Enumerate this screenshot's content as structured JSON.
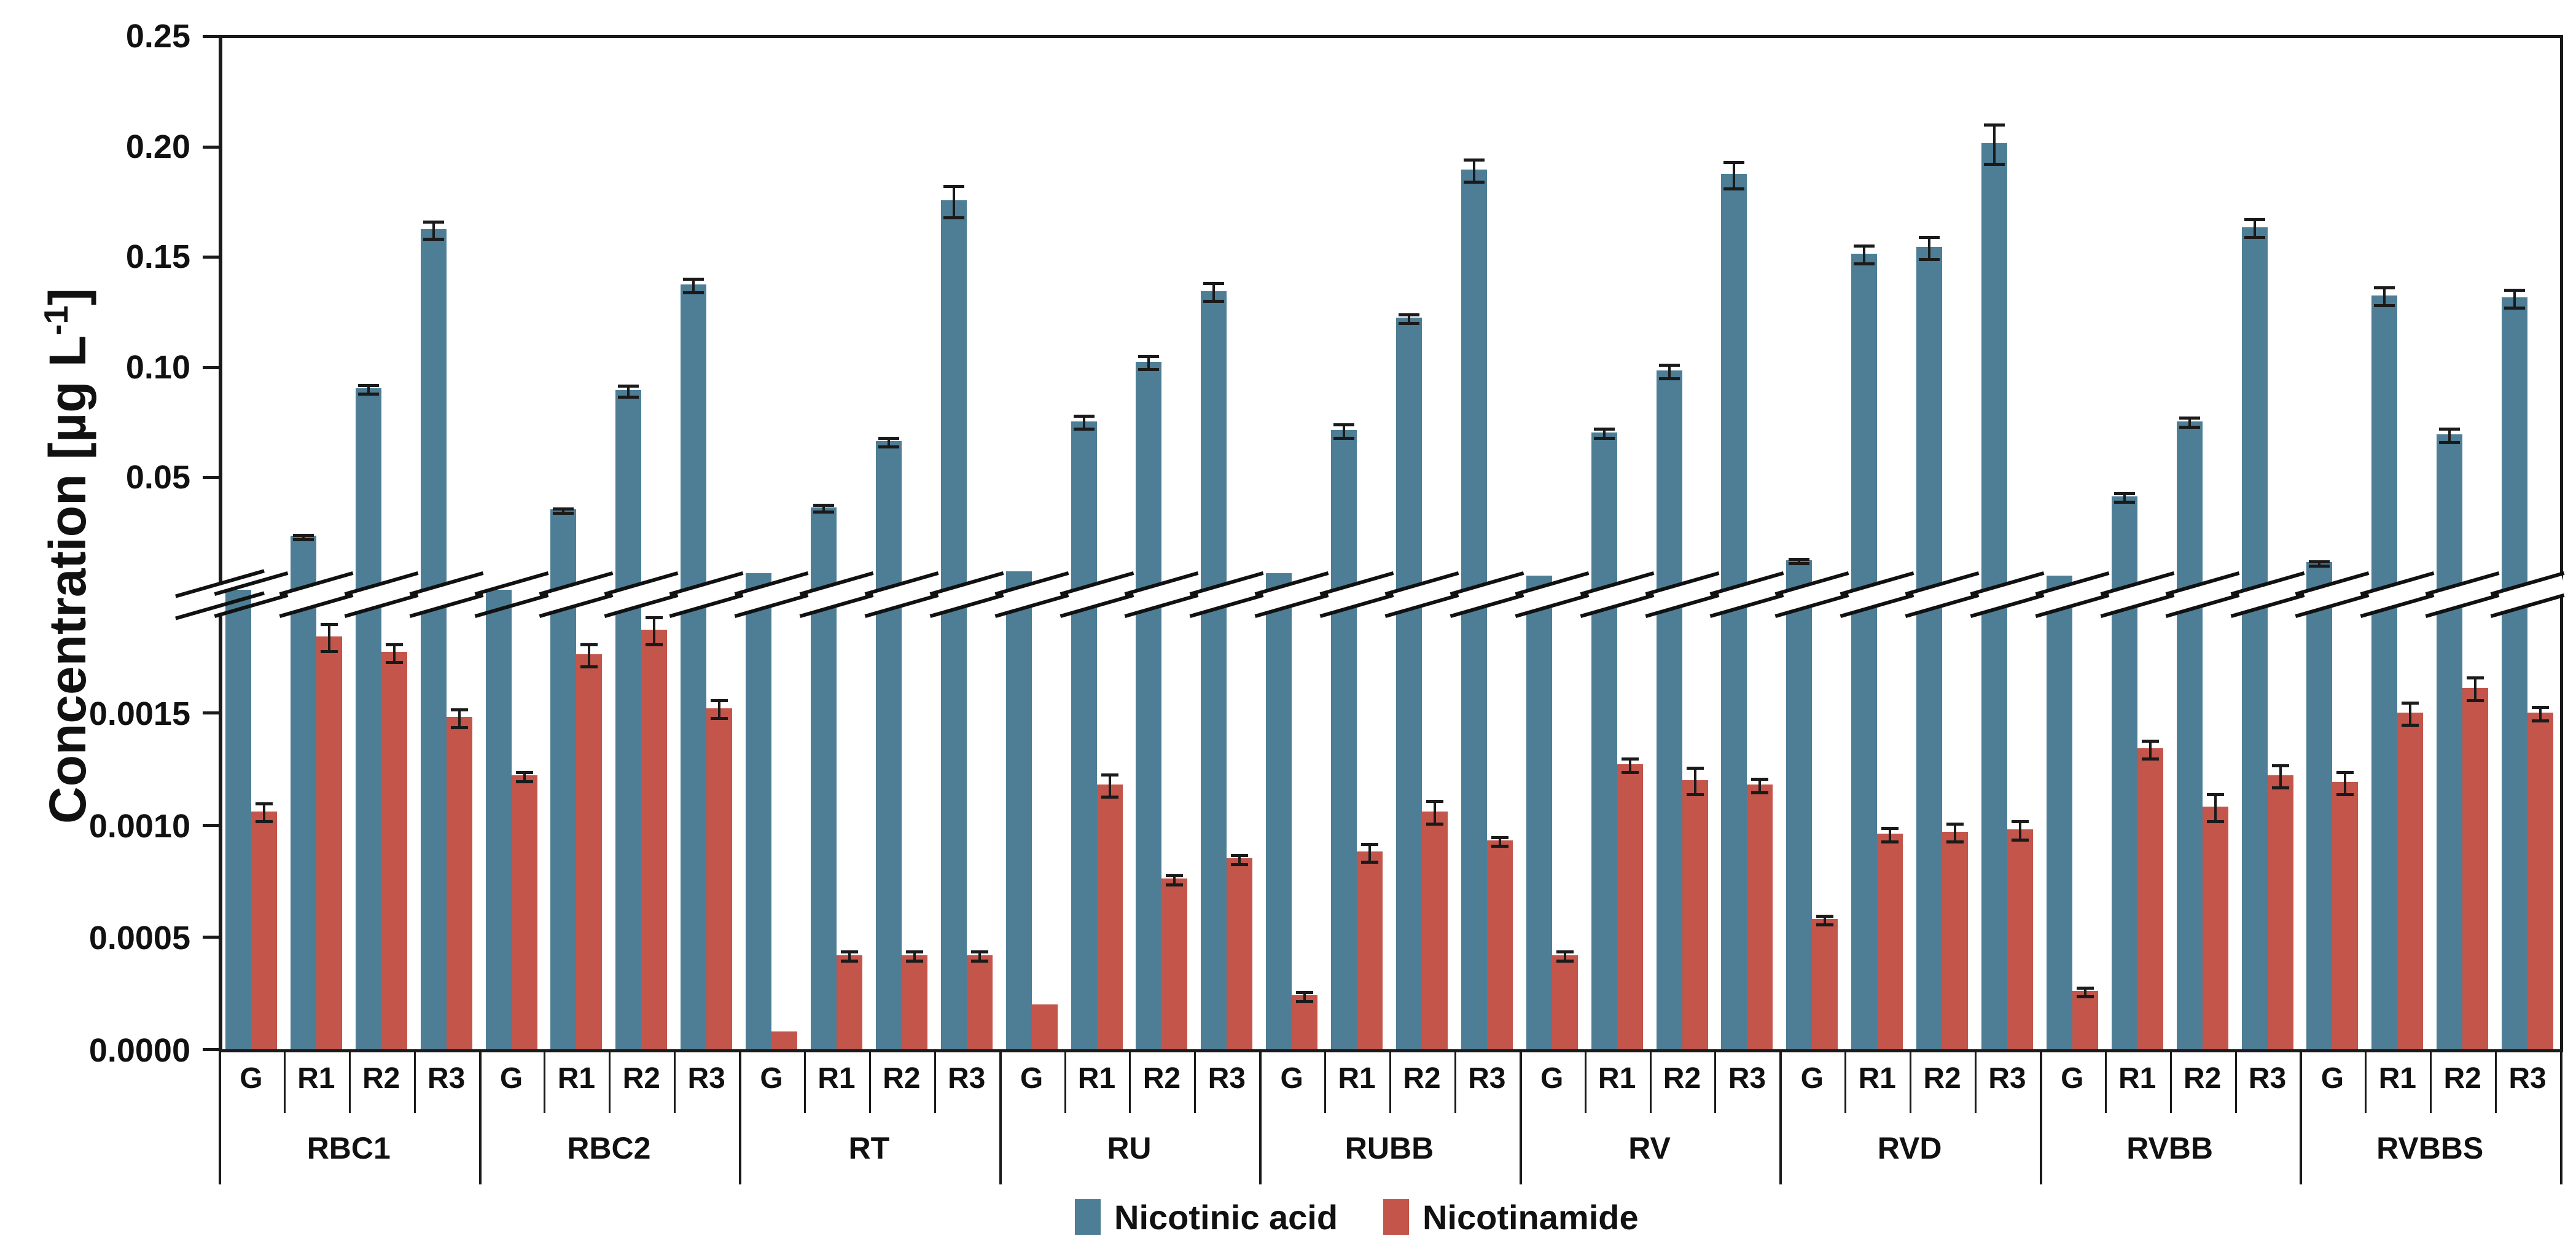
{
  "y_axis": {
    "title_pre": "Concentration [µg L",
    "title_sup": "-1",
    "title_post": "]",
    "upper_ticks": {
      "values": [
        0.05,
        0.1,
        0.15,
        0.2,
        0.25
      ],
      "labels": [
        "0.05",
        "0.10",
        "0.15",
        "0.20",
        "0.25"
      ]
    },
    "lower_ticks": {
      "values": [
        0.0,
        0.0005,
        0.001,
        0.0015
      ],
      "labels": [
        "0.0000",
        "0.0005",
        "0.0010",
        "0.0015"
      ]
    }
  },
  "legend": {
    "items": [
      {
        "label": "Nicotinic acid",
        "color": "#4D7E96"
      },
      {
        "label": "Nicotinamide",
        "color": "#C3554B"
      }
    ]
  },
  "colors": {
    "nicotinic_acid": "#4D7E96",
    "nicotinamide": "#C3554B",
    "axis": "#1a1a1a"
  },
  "chart_data": {
    "type": "bar",
    "title": "",
    "xlabel": "",
    "ylabel": "Concentration [µg L-1]",
    "axis_break": true,
    "upper_axis": {
      "range": [
        0,
        0.25
      ],
      "tick_step": 0.05
    },
    "lower_axis": {
      "range": [
        0,
        0.0019
      ],
      "tick_step": 0.0005
    },
    "legend_position": "bottom",
    "grid": false,
    "groups": [
      "RBC1",
      "RBC2",
      "RT",
      "RU",
      "RUBB",
      "RV",
      "RVD",
      "RVBB",
      "RVBBS"
    ],
    "subgroups": [
      "G",
      "R1",
      "R2",
      "R3"
    ],
    "series": [
      {
        "name": "Nicotinic acid",
        "color": "#4D7E96",
        "scale": "upper",
        "values": [
          [
            null,
            0.023,
            0.09,
            0.162
          ],
          [
            null,
            0.035,
            0.089,
            0.137
          ],
          [
            0.006,
            0.036,
            0.066,
            0.175
          ],
          [
            0.007,
            0.075,
            0.102,
            0.134
          ],
          [
            0.006,
            0.071,
            0.122,
            0.189
          ],
          [
            0.005,
            0.07,
            0.098,
            0.187
          ],
          [
            0.012,
            0.151,
            0.154,
            0.201
          ],
          [
            0.005,
            0.041,
            0.075,
            0.163
          ],
          [
            0.011,
            0.132,
            0.069,
            0.131
          ]
        ],
        "below_break": [
          [
            true,
            false,
            false,
            false
          ],
          [
            true,
            false,
            false,
            false
          ],
          [
            false,
            false,
            false,
            false
          ],
          [
            false,
            false,
            false,
            false
          ],
          [
            false,
            false,
            false,
            false
          ],
          [
            false,
            false,
            false,
            false
          ],
          [
            false,
            false,
            false,
            false
          ],
          [
            false,
            false,
            false,
            false
          ],
          [
            false,
            false,
            false,
            false
          ]
        ],
        "errors": [
          [
            0,
            0.001,
            0.002,
            0.004
          ],
          [
            0,
            0.001,
            0.0025,
            0.003
          ],
          [
            0,
            0.0015,
            0.002,
            0.007
          ],
          [
            0,
            0.003,
            0.003,
            0.004
          ],
          [
            0,
            0.003,
            0.002,
            0.005
          ],
          [
            0,
            0.002,
            0.003,
            0.006
          ],
          [
            0.001,
            0.004,
            0.005,
            0.009
          ],
          [
            0,
            0.002,
            0.002,
            0.004
          ],
          [
            0.001,
            0.004,
            0.003,
            0.004
          ]
        ]
      },
      {
        "name": "Nicotinamide",
        "color": "#C3554B",
        "scale": "lower",
        "values": [
          [
            0.00106,
            0.00184,
            0.00177,
            0.00148
          ],
          [
            0.00122,
            0.00176,
            0.00187,
            0.00152
          ],
          [
            8e-05,
            0.00042,
            0.00042,
            0.00042
          ],
          [
            0.0002,
            0.00118,
            0.00076,
            0.00085
          ],
          [
            0.00024,
            0.00088,
            0.00106,
            0.00093
          ],
          [
            0.00042,
            0.00127,
            0.0012,
            0.00118
          ],
          [
            0.00058,
            0.00096,
            0.00097,
            0.00098
          ],
          [
            0.00026,
            0.00134,
            0.00108,
            0.00122
          ],
          [
            0.00119,
            0.0015,
            0.00161,
            0.0015
          ]
        ],
        "errors": [
          [
            4e-05,
            6e-05,
            4e-05,
            4e-05
          ],
          [
            2e-05,
            5e-05,
            6e-05,
            4e-05
          ],
          [
            1e-05,
            2e-05,
            2e-05,
            2e-05
          ],
          [
            1e-05,
            5e-05,
            2e-05,
            2e-05
          ],
          [
            2e-05,
            4e-05,
            5e-05,
            2e-05
          ],
          [
            2e-05,
            3e-05,
            6e-05,
            3e-05
          ],
          [
            2e-05,
            3e-05,
            4e-05,
            4e-05
          ],
          [
            2e-05,
            4e-05,
            6e-05,
            5e-05
          ],
          [
            5e-05,
            5e-05,
            5e-05,
            3e-05
          ]
        ]
      }
    ]
  }
}
